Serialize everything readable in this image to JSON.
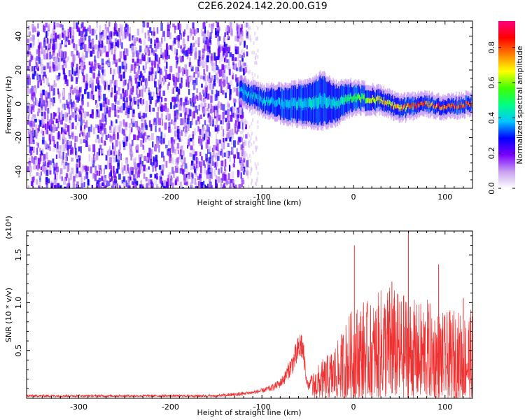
{
  "title": "C2E6.2024.142.20.00.G19",
  "colors": {
    "snr_line": "#f03030",
    "rainbow": [
      "#ffffff",
      "#c8a0f0",
      "#7a00ff",
      "#0000ff",
      "#00c8ff",
      "#00ff80",
      "#40ff00",
      "#ffff00",
      "#ff8000",
      "#ff0000",
      "#ff0080"
    ]
  },
  "chart_data": [
    {
      "type": "heatmap",
      "title": "C2E6.2024.142.20.00.G19",
      "xlabel": "Height of straight line (km)",
      "ylabel": "Frequency (Hz)",
      "xlim": [
        -357,
        130
      ],
      "ylim": [
        -50,
        49
      ],
      "xticks": [
        -300,
        -200,
        -100,
        0,
        100
      ],
      "xtick_labels": [
        "-300",
        "-200",
        "-100",
        "0",
        "100"
      ],
      "yticks": [
        40,
        20,
        0,
        -20,
        -40
      ],
      "ytick_labels": [
        "40",
        "20",
        "0",
        "-20",
        "-40"
      ],
      "colorbar": {
        "label": "Normalized spectral amplitude",
        "range": [
          0,
          0.95
        ],
        "ticks": [
          0.0,
          0.2,
          0.4,
          0.6,
          0.8
        ],
        "tick_labels": [
          "0.0",
          "0.2",
          "0.4",
          "0.6",
          "0.8"
        ]
      },
      "regions": [
        {
          "name": "noise",
          "x_range": [
            -357,
            -125
          ],
          "y_range": [
            -50,
            49
          ],
          "amplitude_range": [
            0.05,
            0.3
          ]
        },
        {
          "name": "signal_band",
          "points": [
            {
              "x": -125,
              "f_center": 8,
              "width": 10,
              "amplitude": 0.45
            },
            {
              "x": -100,
              "f_center": 2,
              "width": 12,
              "amplitude": 0.45
            },
            {
              "x": -75,
              "f_center": 0,
              "width": 18,
              "amplitude": 0.45
            },
            {
              "x": -50,
              "f_center": 0,
              "width": 22,
              "amplitude": 0.45
            },
            {
              "x": -35,
              "f_center": 2,
              "width": 28,
              "amplitude": 0.45
            },
            {
              "x": -20,
              "f_center": 0,
              "width": 20,
              "amplitude": 0.45
            },
            {
              "x": 0,
              "f_center": 4,
              "width": 14,
              "amplitude": 0.6
            },
            {
              "x": 30,
              "f_center": 2,
              "width": 10,
              "amplitude": 0.75
            },
            {
              "x": 50,
              "f_center": -3,
              "width": 10,
              "amplitude": 0.85
            },
            {
              "x": 75,
              "f_center": 0,
              "width": 8,
              "amplitude": 0.9
            },
            {
              "x": 100,
              "f_center": -2,
              "width": 8,
              "amplitude": 0.9
            },
            {
              "x": 128,
              "f_center": 0,
              "width": 8,
              "amplitude": 0.9
            }
          ]
        }
      ]
    },
    {
      "type": "line",
      "xlabel": "Height of straight line (km)",
      "ylabel": "SNR (10 * v/v)",
      "y_multiplier_label": "(x10⁴)",
      "xlim": [
        -357,
        130
      ],
      "ylim": [
        0,
        1.75
      ],
      "xticks": [
        -300,
        -200,
        -100,
        0,
        100
      ],
      "xtick_labels": [
        "-300",
        "-200",
        "-100",
        "0",
        "100"
      ],
      "yticks": [
        0.5,
        1.0,
        1.5
      ],
      "ytick_labels": [
        "0.5",
        "1.0",
        "1.5"
      ],
      "series": [
        {
          "x": [
            -357,
            -300,
            -250,
            -200,
            -150,
            -125,
            -110,
            -100,
            -90,
            -80,
            -75,
            -70,
            -65,
            -60,
            -57,
            -55,
            -52,
            -50,
            -48,
            -45,
            -42,
            -40,
            -35,
            -30,
            -25,
            -20,
            -15,
            -10,
            -5,
            0,
            5,
            10,
            20,
            30,
            40,
            50,
            60,
            70,
            80,
            90,
            100,
            110,
            120,
            130
          ],
          "y": [
            0.03,
            0.03,
            0.03,
            0.03,
            0.03,
            0.05,
            0.07,
            0.09,
            0.12,
            0.18,
            0.25,
            0.35,
            0.45,
            0.58,
            0.65,
            0.55,
            0.3,
            0.15,
            0.15,
            0.25,
            0.3,
            0.32,
            0.38,
            0.42,
            0.48,
            0.55,
            0.6,
            0.75,
            0.85,
            0.9,
            0.95,
            1.0,
            0.95,
            1.1,
            1.15,
            1.05,
            1.05,
            0.95,
            1.0,
            0.9,
            0.85,
            0.9,
            0.85,
            0.9
          ],
          "peaks": [
            {
              "x": 1,
              "y": 1.6
            },
            {
              "x": 60,
              "y": 1.75
            },
            {
              "x": 42,
              "y": 1.22
            },
            {
              "x": 93,
              "y": 1.4
            },
            {
              "x": 120,
              "y": 1.05
            }
          ]
        }
      ]
    }
  ]
}
